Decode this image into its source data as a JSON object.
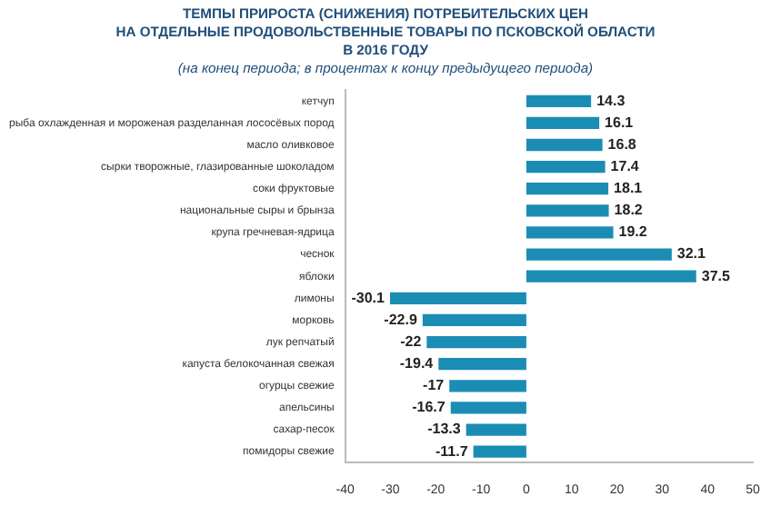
{
  "chart_data": {
    "type": "bar",
    "orientation": "horizontal",
    "title": "ТЕМПЫ ПРИРОСТА (СНИЖЕНИЯ) ПОТРЕБИТЕЛЬСКИХ ЦЕН\nНА ОТДЕЛЬНЫЕ  ПРОДОВОЛЬСТВЕННЫЕ ТОВАРЫ ПО ПСКОВСКОЙ ОБЛАСТИ\nВ 2016 ГОДУ",
    "subtitle": "(на конец периода; в процентах к концу предыдущего периода)",
    "categories": [
      "кетчуп",
      "рыба охлажденная и мороженая разделанная лососёвых пород",
      "масло оливковое",
      "сырки творожные, глазированные шоколадом",
      "соки фруктовые",
      "национальные сыры и брынза",
      "крупа гречневая-ядрица",
      "чеснок",
      "яблоки",
      "лимоны",
      "морковь",
      "лук репчатый",
      "капуста белокочанная свежая",
      "огурцы свежие",
      "апельсины",
      "сахар-песок",
      "помидоры свежие"
    ],
    "values": [
      14.3,
      16.1,
      16.8,
      17.4,
      18.1,
      18.2,
      19.2,
      32.1,
      37.5,
      -30.1,
      -22.9,
      -22,
      -19.4,
      -17,
      -16.7,
      -13.3,
      -11.7
    ],
    "color": "#1b8db5",
    "xlim": [
      -40,
      50
    ],
    "xticks": [
      -40,
      -30,
      -20,
      -10,
      0,
      10,
      20,
      30,
      40,
      50
    ],
    "grid": false,
    "legend": false,
    "data_labels": true
  }
}
